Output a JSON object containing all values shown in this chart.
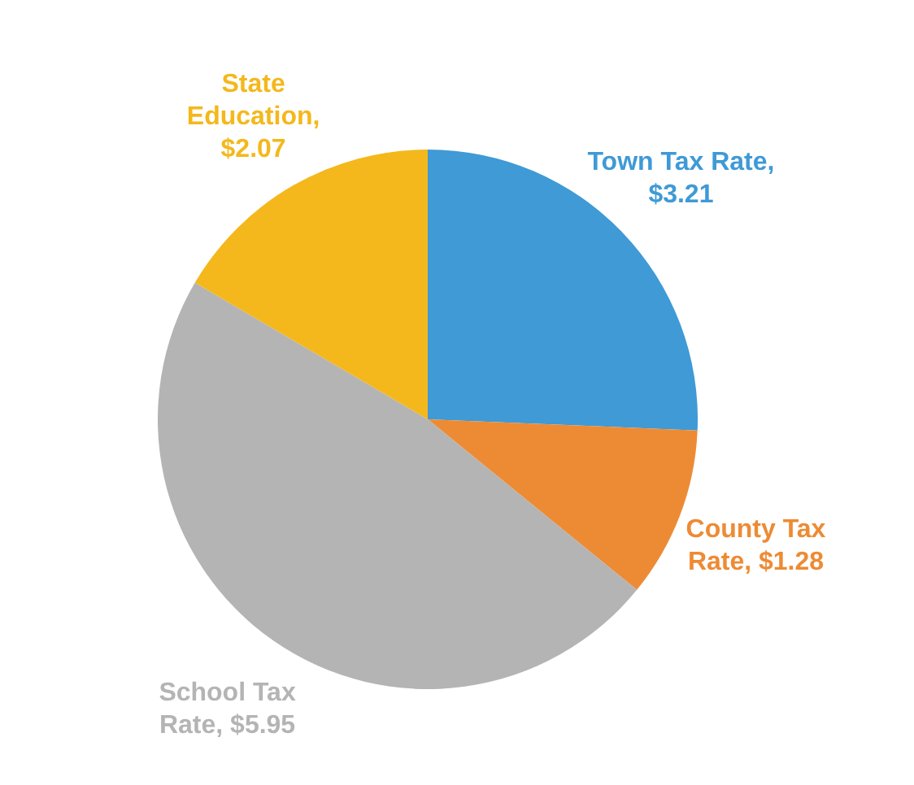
{
  "chart_data": {
    "type": "pie",
    "categories": [
      "Town Tax Rate, $3.21",
      "County Tax Rate, $1.28",
      "School Tax Rate, $5.95",
      "State Education, $2.07"
    ],
    "values": [
      3.21,
      1.28,
      5.95,
      2.07
    ],
    "colors": [
      "#3f9ad6",
      "#ed8b34",
      "#b4b4b4",
      "#f4b81c"
    ]
  }
}
